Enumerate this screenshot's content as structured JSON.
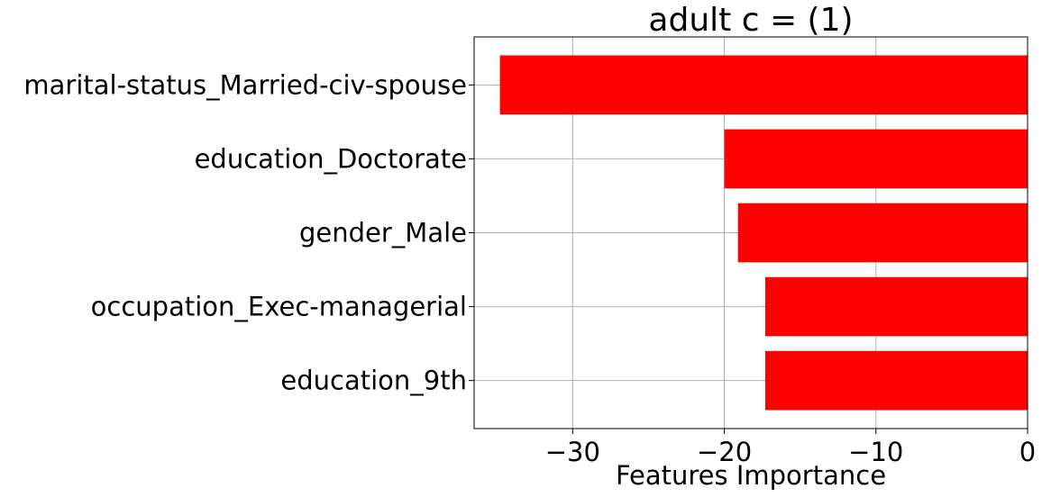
{
  "chart_data": {
    "type": "bar",
    "orientation": "horizontal",
    "title": "adult c = (1)",
    "xlabel": "Features Importance",
    "ylabel": "",
    "categories": [
      "marital-status_Married-civ-spouse",
      "education_Doctorate",
      "gender_Male",
      "occupation_Exec-managerial",
      "education_9th"
    ],
    "values": [
      -34.8,
      -20.0,
      -19.1,
      -17.3,
      -17.3
    ],
    "xlim": [
      -36.5,
      0
    ],
    "xticks": [
      -30,
      -20,
      -10,
      0
    ],
    "xtick_labels": [
      "−30",
      "−20",
      "−10",
      "0"
    ],
    "bar_color": "#ff0000",
    "grid": true,
    "legend": "none"
  }
}
